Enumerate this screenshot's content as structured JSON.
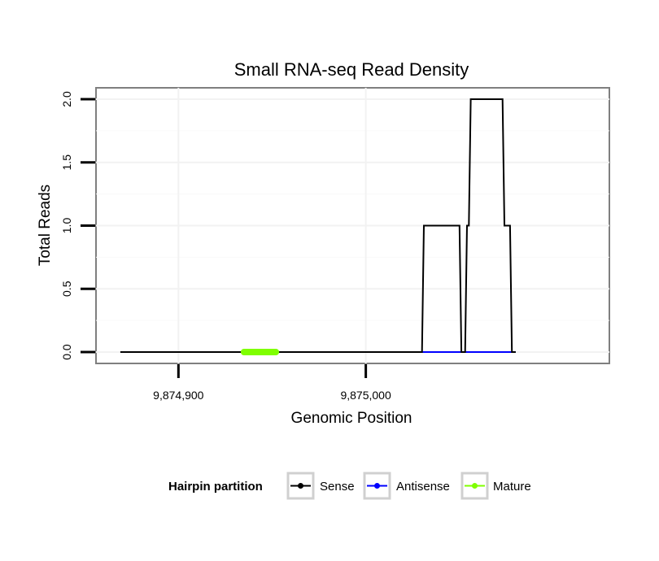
{
  "chart_data": {
    "type": "line",
    "title": "Small RNA-seq Read Density",
    "xlabel": "Genomic Position",
    "ylabel": "Total Reads",
    "xlim": [
      9874856,
      9875130
    ],
    "ylim": [
      -0.09,
      2.09
    ],
    "xticks": [
      {
        "value": 9874900,
        "label": "9,874,900"
      },
      {
        "value": 9875000,
        "label": "9,875,000"
      }
    ],
    "yticks": [
      {
        "value": 0.0,
        "label": "0.0"
      },
      {
        "value": 0.5,
        "label": "0.5"
      },
      {
        "value": 1.0,
        "label": "1.0"
      },
      {
        "value": 1.5,
        "label": "1.5"
      },
      {
        "value": 2.0,
        "label": "2.0"
      }
    ],
    "grid": true,
    "series": [
      {
        "name": "Sense",
        "color": "#000000",
        "x": [
          9874869,
          9875030,
          9875031,
          9875050,
          9875051,
          9875053,
          9875054,
          9875055,
          9875056,
          9875058,
          9875059,
          9875073,
          9875074,
          9875077,
          9875078,
          9875080
        ],
        "y": [
          0,
          0,
          1,
          1,
          0,
          0,
          1,
          1,
          2,
          2,
          2,
          2,
          1,
          1,
          0,
          0
        ]
      },
      {
        "name": "Antisense",
        "color": "#0000ff",
        "x": [
          9875030,
          9875080
        ],
        "y": [
          0,
          0
        ]
      },
      {
        "name": "Mature",
        "color": "#7fff00",
        "x": [
          9874935,
          9874952
        ],
        "y": [
          0,
          0
        ]
      }
    ],
    "legend": {
      "title": "Hairpin partition",
      "position": "bottom",
      "entries": [
        {
          "label": "Sense",
          "color": "#000000"
        },
        {
          "label": "Antisense",
          "color": "#0000ff"
        },
        {
          "label": "Mature",
          "color": "#7fff00"
        }
      ]
    }
  }
}
